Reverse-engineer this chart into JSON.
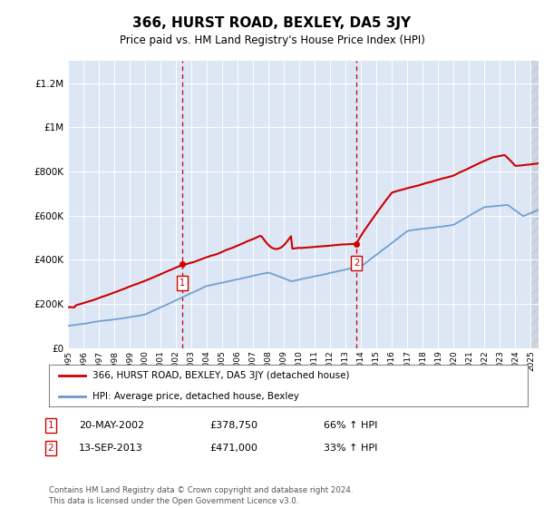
{
  "title": "366, HURST ROAD, BEXLEY, DA5 3JY",
  "subtitle": "Price paid vs. HM Land Registry's House Price Index (HPI)",
  "bg_color": "#dce6f5",
  "ylabel_ticks": [
    "£0",
    "£200K",
    "£400K",
    "£600K",
    "£800K",
    "£1M",
    "£1.2M"
  ],
  "ytick_values": [
    0,
    200000,
    400000,
    600000,
    800000,
    1000000,
    1200000
  ],
  "ylim": [
    0,
    1300000
  ],
  "sale1": {
    "date_num": 2002.38,
    "price": 378750,
    "label": "1",
    "date_str": "20-MAY-2002",
    "hpi_change": "66% ↑ HPI"
  },
  "sale2": {
    "date_num": 2013.71,
    "price": 471000,
    "label": "2",
    "date_str": "13-SEP-2013",
    "hpi_change": "33% ↑ HPI"
  },
  "legend_line1": "366, HURST ROAD, BEXLEY, DA5 3JY (detached house)",
  "legend_line2": "HPI: Average price, detached house, Bexley",
  "footnote": "Contains HM Land Registry data © Crown copyright and database right 2024.\nThis data is licensed under the Open Government Licence v3.0.",
  "red_color": "#cc0000",
  "blue_color": "#6699cc",
  "xmin": 1995,
  "xmax": 2025.5,
  "hatch_start": 2025.0
}
